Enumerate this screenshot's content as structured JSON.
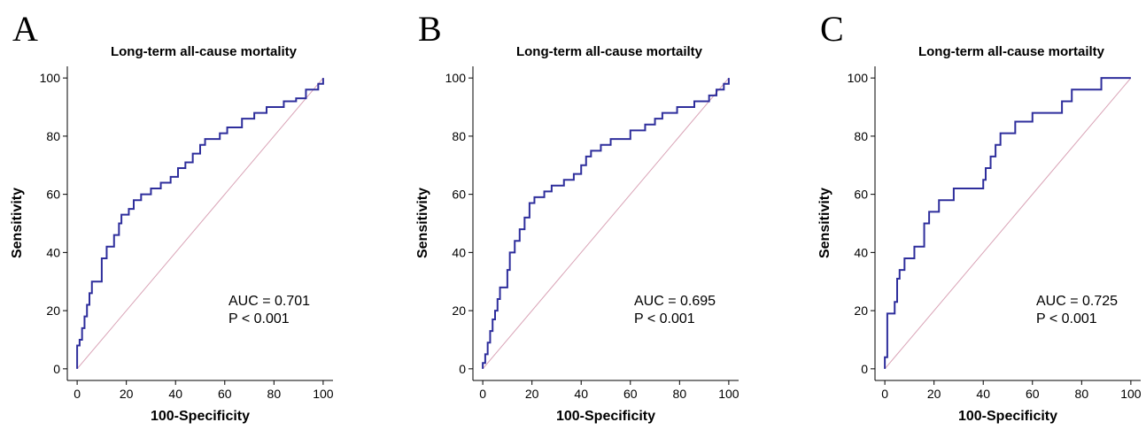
{
  "chart_data": [
    {
      "type": "line",
      "panel": "A",
      "title": "Long-term all-cause mortality",
      "xlabel": "100-Specificity",
      "ylabel": "Sensitivity",
      "annotations": [
        "AUC = 0.701",
        "P < 0.001"
      ],
      "xlim": [
        -4,
        104
      ],
      "ylim": [
        -4,
        104
      ],
      "xticks": [
        0,
        20,
        40,
        60,
        80,
        100
      ],
      "yticks": [
        0,
        20,
        40,
        60,
        80,
        100
      ],
      "series": [
        {
          "color": "#2e2e9c",
          "x": [
            0,
            0,
            1,
            1,
            2,
            2,
            3,
            3,
            4,
            4,
            5,
            5,
            6,
            6,
            10,
            10,
            12,
            12,
            15,
            15,
            17,
            17,
            18,
            18,
            21,
            21,
            23,
            23,
            26,
            26,
            30,
            30,
            34,
            34,
            38,
            38,
            41,
            41,
            44,
            44,
            47,
            47,
            50,
            50,
            52,
            52,
            58,
            58,
            61,
            61,
            67,
            67,
            72,
            72,
            77,
            77,
            84,
            84,
            89,
            89,
            93,
            93,
            98,
            98,
            100,
            100
          ],
          "values": [
            0,
            8,
            8,
            10,
            10,
            14,
            14,
            18,
            18,
            22,
            22,
            26,
            26,
            30,
            30,
            38,
            38,
            42,
            42,
            46,
            46,
            50,
            50,
            53,
            53,
            55,
            55,
            58,
            58,
            60,
            60,
            62,
            62,
            64,
            64,
            66,
            66,
            69,
            69,
            71,
            71,
            74,
            74,
            77,
            77,
            79,
            79,
            81,
            81,
            83,
            83,
            86,
            86,
            88,
            88,
            90,
            90,
            92,
            92,
            93,
            93,
            96,
            96,
            98,
            98,
            100
          ]
        },
        {
          "color": "#d9a3b6",
          "x": [
            0,
            100
          ],
          "values": [
            0,
            100
          ]
        }
      ]
    },
    {
      "type": "line",
      "panel": "B",
      "title": "Long-term all-cause mortailty",
      "xlabel": "100-Specificity",
      "ylabel": "Sensitivity",
      "annotations": [
        "AUC = 0.695",
        "P < 0.001"
      ],
      "xlim": [
        -4,
        104
      ],
      "ylim": [
        -4,
        104
      ],
      "xticks": [
        0,
        20,
        40,
        60,
        80,
        100
      ],
      "yticks": [
        0,
        20,
        40,
        60,
        80,
        100
      ],
      "series": [
        {
          "color": "#2e2e9c",
          "x": [
            0,
            0,
            1,
            1,
            2,
            2,
            3,
            3,
            4,
            4,
            5,
            5,
            6,
            6,
            7,
            7,
            10,
            10,
            11,
            11,
            13,
            13,
            15,
            15,
            17,
            17,
            19,
            19,
            21,
            21,
            25,
            25,
            28,
            28,
            33,
            33,
            37,
            37,
            40,
            40,
            42,
            42,
            44,
            44,
            48,
            48,
            52,
            52,
            60,
            60,
            66,
            66,
            70,
            70,
            73,
            73,
            79,
            79,
            86,
            86,
            92,
            92,
            95,
            95,
            98,
            98,
            100,
            100
          ],
          "values": [
            0,
            2,
            2,
            5,
            5,
            9,
            9,
            13,
            13,
            17,
            17,
            20,
            20,
            24,
            24,
            28,
            28,
            34,
            34,
            40,
            40,
            44,
            44,
            48,
            48,
            52,
            52,
            57,
            57,
            59,
            59,
            61,
            61,
            63,
            63,
            65,
            65,
            67,
            67,
            70,
            70,
            73,
            73,
            75,
            75,
            77,
            77,
            79,
            79,
            82,
            82,
            84,
            84,
            86,
            86,
            88,
            88,
            90,
            90,
            92,
            92,
            94,
            94,
            96,
            96,
            98,
            98,
            100
          ]
        },
        {
          "color": "#d9a3b6",
          "x": [
            0,
            100
          ],
          "values": [
            0,
            100
          ]
        }
      ]
    },
    {
      "type": "line",
      "panel": "C",
      "title": "Long-term all-cause mortailty",
      "xlabel": "100-Specificity",
      "ylabel": "Sensitivity",
      "annotations": [
        "AUC = 0.725",
        "P < 0.001"
      ],
      "xlim": [
        -4,
        104
      ],
      "ylim": [
        -4,
        104
      ],
      "xticks": [
        0,
        20,
        40,
        60,
        80,
        100
      ],
      "yticks": [
        0,
        20,
        40,
        60,
        80,
        100
      ],
      "series": [
        {
          "color": "#2e2e9c",
          "x": [
            0,
            0,
            1,
            1,
            4,
            4,
            5,
            5,
            6,
            6,
            8,
            8,
            12,
            12,
            16,
            16,
            18,
            18,
            22,
            22,
            28,
            28,
            40,
            40,
            41,
            41,
            43,
            43,
            45,
            45,
            47,
            47,
            53,
            53,
            60,
            60,
            72,
            72,
            76,
            76,
            88,
            88,
            100
          ],
          "values": [
            0,
            4,
            4,
            19,
            19,
            23,
            23,
            31,
            31,
            34,
            34,
            38,
            38,
            42,
            42,
            50,
            50,
            54,
            54,
            58,
            58,
            62,
            62,
            65,
            65,
            69,
            69,
            73,
            73,
            77,
            77,
            81,
            81,
            85,
            85,
            88,
            88,
            92,
            92,
            96,
            96,
            100,
            100
          ]
        },
        {
          "color": "#d9a3b6",
          "x": [
            0,
            100
          ],
          "values": [
            0,
            100
          ]
        }
      ]
    }
  ]
}
